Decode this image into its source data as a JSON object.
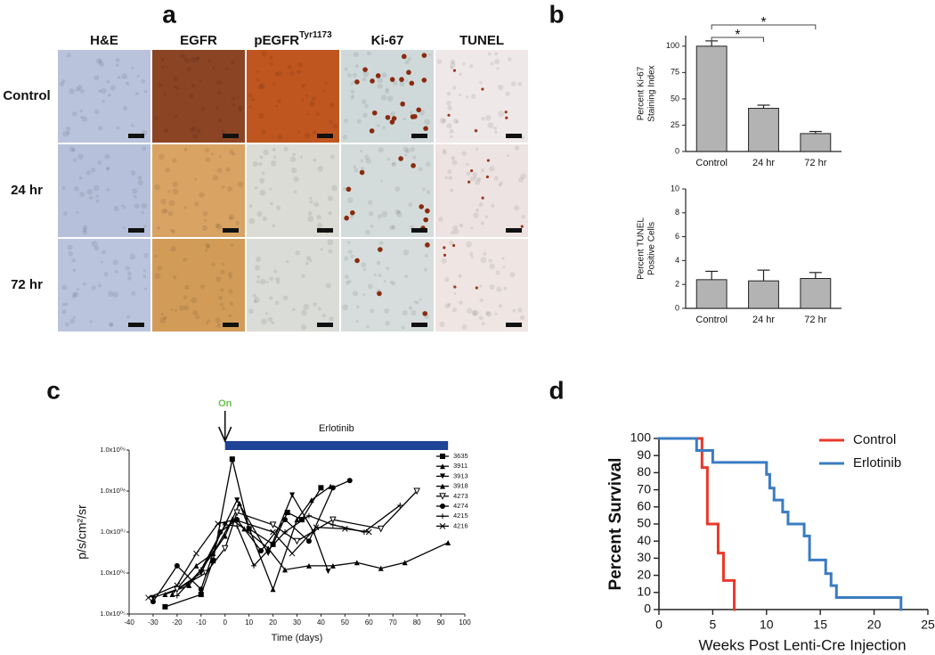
{
  "panel_labels": [
    "a",
    "b",
    "c",
    "d"
  ],
  "image_grid": {
    "columns": [
      "H&E",
      "EGFR",
      {
        "label": "pEGFR",
        "superscript": "Tyr1173"
      },
      "Ki-67",
      "TUNEL"
    ],
    "rows": [
      "Control",
      "24 hr",
      "72 hr"
    ]
  },
  "chart_data": [
    {
      "type": "bar",
      "ylabel": [
        "Percent Ki-67",
        "Staining Index"
      ],
      "categories": [
        "Control",
        "24 hr",
        "72 hr"
      ],
      "values": [
        100,
        41,
        17
      ],
      "errors": [
        5,
        3,
        2
      ],
      "color": "#b3b3b3",
      "ylim": [
        0,
        110
      ],
      "yticks": [
        0,
        25,
        50,
        75,
        100
      ],
      "significance": [
        {
          "label": "*",
          "between": [
            "Control",
            "24 hr"
          ]
        },
        {
          "label": "*",
          "between": [
            "Control",
            "72 hr"
          ]
        }
      ]
    },
    {
      "type": "bar",
      "ylabel": [
        "Percent TUNEL",
        "Positive Cells"
      ],
      "categories": [
        "Control",
        "24 hr",
        "72 hr"
      ],
      "values": [
        2.4,
        2.3,
        2.5
      ],
      "errors": [
        0.7,
        0.9,
        0.5
      ],
      "color": "#b3b3b3",
      "ylim": [
        0,
        10
      ],
      "yticks": [
        0,
        2,
        4,
        6,
        8,
        10
      ]
    },
    {
      "type": "line",
      "log_y": true,
      "xlabel": "Time (days)",
      "ylabel": "p/s/cm²/sr",
      "xlim": [
        -40,
        100
      ],
      "xticks": [
        -40,
        -30,
        -20,
        -10,
        0,
        10,
        20,
        30,
        40,
        50,
        60,
        70,
        80,
        90,
        100
      ],
      "ylim": [
        100000,
        1000000000
      ],
      "yticks": [
        {
          "value": 100000,
          "label": "1.0x10⁰⁵"
        },
        {
          "value": 1000000,
          "label": "1.0x10⁰⁶"
        },
        {
          "value": 10000000,
          "label": "1.0x10⁰⁷"
        },
        {
          "value": 100000000,
          "label": "1.0x10⁰⁸"
        },
        {
          "value": 1000000000,
          "label": "1.0x10⁰⁹"
        }
      ],
      "legend": "upper right",
      "treatment": {
        "label": "Erlotinib",
        "start": 0,
        "end": 93,
        "color": "#1f4396"
      },
      "onset": {
        "label": "On",
        "x": 0,
        "color": "#6abf4b"
      },
      "series": [
        {
          "name": "3635",
          "color": "#000000",
          "marker": "square",
          "x": [
            -25,
            -10,
            -5,
            3,
            10,
            20,
            26,
            32,
            40
          ],
          "values": [
            150000,
            300000,
            2000000,
            600000000,
            12000000,
            5000000,
            30000000,
            20000000,
            120000000
          ]
        },
        {
          "name": "3911",
          "color": "#000000",
          "marker": "triangle",
          "x": [
            -22,
            -12,
            -5,
            3,
            8,
            18,
            25,
            35,
            45,
            55,
            65,
            75,
            93
          ],
          "values": [
            300000,
            1500000,
            3000000,
            20000000,
            12000000,
            4000000,
            1200000,
            1500000,
            1500000,
            1800000,
            1300000,
            1800000,
            5500000
          ]
        },
        {
          "name": "3913",
          "color": "#000000",
          "marker": "triangle-down",
          "x": [
            -30,
            -20,
            -10,
            0,
            5,
            18,
            28,
            37,
            43
          ],
          "values": [
            250000,
            400000,
            1000000,
            15000000,
            60000000,
            3000000,
            80000000,
            10000000,
            1100000
          ]
        },
        {
          "name": "3918",
          "color": "#000000",
          "marker": "triangle",
          "x": [
            -25,
            -15,
            -5,
            0,
            6,
            20,
            30,
            36,
            44
          ],
          "values": [
            300000,
            500000,
            3000000,
            8000000,
            50000000,
            400000,
            20000000,
            60000000,
            130000000
          ]
        },
        {
          "name": "4273",
          "color": "#000000",
          "marker": "open-triangle-down",
          "x": [
            -20,
            -8,
            0,
            5,
            20,
            30,
            45,
            65,
            80
          ],
          "values": [
            400000,
            1000000,
            4000000,
            30000000,
            15000000,
            6000000,
            20000000,
            12000000,
            100000000
          ]
        },
        {
          "name": "4274",
          "color": "#000000",
          "marker": "circle",
          "x": [
            -30,
            -20,
            -10,
            -2,
            5,
            15,
            25,
            35,
            45,
            52
          ],
          "values": [
            200000,
            1500000,
            400000,
            10000000,
            20000000,
            3500000,
            20000000,
            6000000,
            120000000,
            180000000
          ]
        },
        {
          "name": "4215",
          "color": "#000000",
          "marker": "plus",
          "x": [
            -20,
            -10,
            0,
            5,
            12,
            25,
            35,
            45,
            58,
            73
          ],
          "values": [
            280000,
            1200000,
            15000000,
            14000000,
            1500000,
            10000000,
            25000000,
            15000000,
            10000000,
            45000000
          ]
        },
        {
          "name": "4216",
          "color": "#000000",
          "marker": "x",
          "x": [
            -32,
            -20,
            -12,
            -3,
            4,
            20,
            28,
            38,
            50,
            60
          ],
          "values": [
            250000,
            500000,
            3000000,
            16000000,
            20000000,
            10000000,
            3000000,
            13000000,
            12000000,
            10000000
          ]
        }
      ]
    },
    {
      "type": "step",
      "xlabel": "Weeks Post Lenti-Cre Injection",
      "ylabel": "Percent Survival",
      "xlim": [
        0,
        25
      ],
      "xticks": [
        0,
        5,
        10,
        15,
        20,
        25
      ],
      "ylim": [
        0,
        100
      ],
      "yticks": [
        0,
        10,
        20,
        30,
        40,
        50,
        60,
        70,
        80,
        90,
        100
      ],
      "legend": "upper right",
      "series": [
        {
          "name": "Control",
          "color": "#e8392a",
          "x": [
            0,
            4,
            4.5,
            5.5,
            6,
            7
          ],
          "values": [
            100,
            83,
            50,
            33,
            17,
            0
          ]
        },
        {
          "name": "Erlotinib",
          "color": "#3a7cc3",
          "x": [
            0,
            3.5,
            5,
            10,
            10.3,
            10.7,
            11.5,
            12,
            13.5,
            14,
            15.5,
            16,
            16.5,
            22.5
          ],
          "values": [
            100,
            93,
            86,
            79,
            71,
            64,
            57,
            50,
            43,
            29,
            21,
            14,
            7,
            0
          ]
        }
      ]
    }
  ]
}
